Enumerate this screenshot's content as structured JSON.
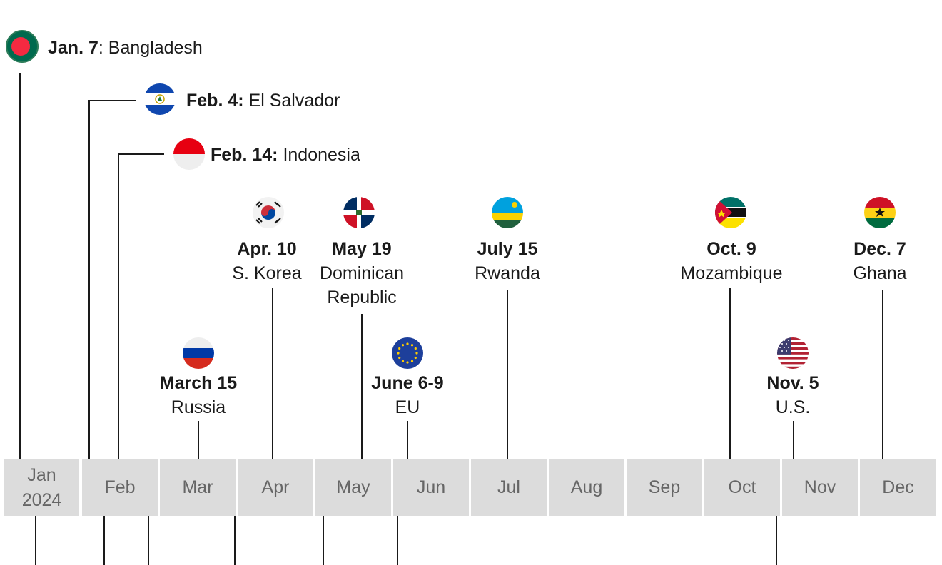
{
  "events": [
    {
      "date": "Jan. 7",
      "country": "Bangladesh",
      "flag": "bangladesh"
    },
    {
      "date": "Feb. 4:",
      "country": "El Salvador",
      "flag": "el-salvador"
    },
    {
      "date": "Feb. 14:",
      "country": "Indonesia",
      "flag": "indonesia"
    },
    {
      "date": "March 15",
      "country": "Russia",
      "flag": "russia"
    },
    {
      "date": "Apr. 10",
      "country": "S. Korea",
      "flag": "south-korea"
    },
    {
      "date": "May 19",
      "country": "Dominican Republic",
      "country_lines": [
        "Dominican",
        "Republic"
      ],
      "flag": "dominican-republic"
    },
    {
      "date": "June 6-9",
      "country": "EU",
      "flag": "eu"
    },
    {
      "date": "July 15",
      "country": "Rwanda",
      "flag": "rwanda"
    },
    {
      "date": "Oct. 9",
      "country": "Mozambique",
      "flag": "mozambique"
    },
    {
      "date": "Nov. 5",
      "country": "U.S.",
      "flag": "usa"
    },
    {
      "date": "Dec. 7",
      "country": "Ghana",
      "flag": "ghana"
    }
  ],
  "months": [
    {
      "label": "Jan",
      "year": "2024"
    },
    {
      "label": "Feb"
    },
    {
      "label": "Mar"
    },
    {
      "label": "Apr"
    },
    {
      "label": "May"
    },
    {
      "label": "Jun"
    },
    {
      "label": "Jul"
    },
    {
      "label": "Aug"
    },
    {
      "label": "Sep"
    },
    {
      "label": "Oct"
    },
    {
      "label": "Nov"
    },
    {
      "label": "Dec"
    }
  ],
  "colors": {
    "line": "#1a1a1a",
    "month_bg": "#dcdcdc",
    "month_text": "#666666"
  }
}
